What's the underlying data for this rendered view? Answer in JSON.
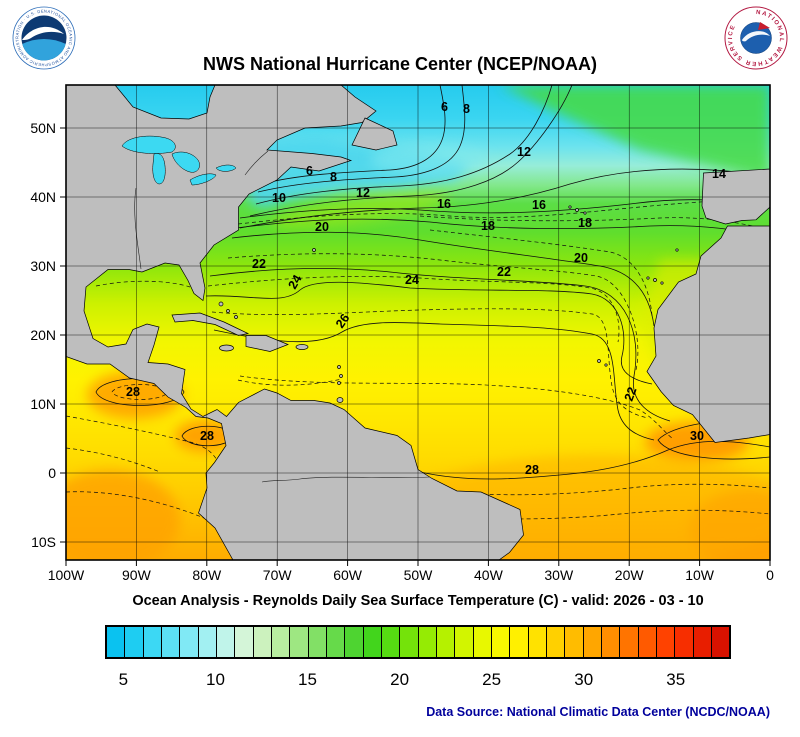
{
  "header": {
    "title": "NWS National Hurricane Center (NCEP/NOAA)"
  },
  "logos": {
    "noaa": {
      "ring_text": "NATIONAL OCEANIC AND ATMOSPHERIC ADMINISTRATION · U.S. DEPARTMENT OF COMMERCE"
    },
    "nws": {
      "ring_text": "NATIONAL WEATHER SERVICE"
    }
  },
  "map": {
    "x_ticks": [
      "100W",
      "90W",
      "80W",
      "70W",
      "60W",
      "50W",
      "40W",
      "30W",
      "20W",
      "10W",
      "0"
    ],
    "y_ticks": [
      "50N",
      "40N",
      "30N",
      "20N",
      "10N",
      "0",
      "10S"
    ],
    "contour_labels": [
      "6",
      "8",
      "12",
      "6",
      "8",
      "12",
      "10",
      "16",
      "16",
      "14",
      "18",
      "18",
      "20",
      "20",
      "22",
      "22",
      "22",
      "24",
      "24",
      "26",
      "28",
      "28",
      "28",
      "30"
    ]
  },
  "subtitle": "Ocean Analysis - Reynolds Daily Sea Surface Temperature (C) - valid: 2026 - 03 - 10",
  "colorbar": {
    "tick_labels": [
      "5",
      "10",
      "15",
      "20",
      "25",
      "30",
      "35"
    ],
    "colors": [
      "#0AC2F0",
      "#1ECDF2",
      "#3CD8F4",
      "#5CE0F5",
      "#80E9F5",
      "#A2F0F2",
      "#C0F4EA",
      "#D4F5D8",
      "#CCF2BE",
      "#B8EEA0",
      "#9EE782",
      "#82E066",
      "#66DA4A",
      "#4ED431",
      "#42D51C",
      "#56DC12",
      "#74E30A",
      "#95EB04",
      "#B5F100",
      "#D2F500",
      "#E8F800",
      "#F8F800",
      "#FFF000",
      "#FFE200",
      "#FFD000",
      "#FFBC00",
      "#FFA600",
      "#FF8E00",
      "#FF7400",
      "#FF5A00",
      "#FF4200",
      "#F72E00",
      "#E81E00",
      "#D81200"
    ]
  },
  "footer": {
    "data_source": "Data Source: National Climatic Data Center (NCDC/NOAA)"
  },
  "chart_data": {
    "type": "heatmap",
    "title": "NWS National Hurricane Center (NCEP/NOAA)",
    "subtitle": "Ocean Analysis - Reynolds Daily Sea Surface Temperature (C) - valid: 2026 - 03 - 10",
    "variable": "Reynolds Daily Sea Surface Temperature (C)",
    "valid_date": "2026 - 03 - 10",
    "x_axis": {
      "ticks": [
        "100W",
        "90W",
        "80W",
        "70W",
        "60W",
        "50W",
        "40W",
        "30W",
        "20W",
        "10W",
        "0"
      ]
    },
    "y_axis": {
      "ticks": [
        "10S",
        "0",
        "10N",
        "20N",
        "30N",
        "40N",
        "50N"
      ]
    },
    "colorbar": {
      "units": "C",
      "ticks": [
        5,
        10,
        15,
        20,
        25,
        30,
        35
      ],
      "range": [
        4,
        38
      ]
    },
    "contour_levels_labeled": [
      6,
      8,
      10,
      12,
      14,
      16,
      18,
      20,
      22,
      24,
      26,
      28,
      30
    ],
    "land_color": "#BEBEBE",
    "data_source": "Data Source: National Climatic Data Center (NCDC/NOAA)"
  }
}
